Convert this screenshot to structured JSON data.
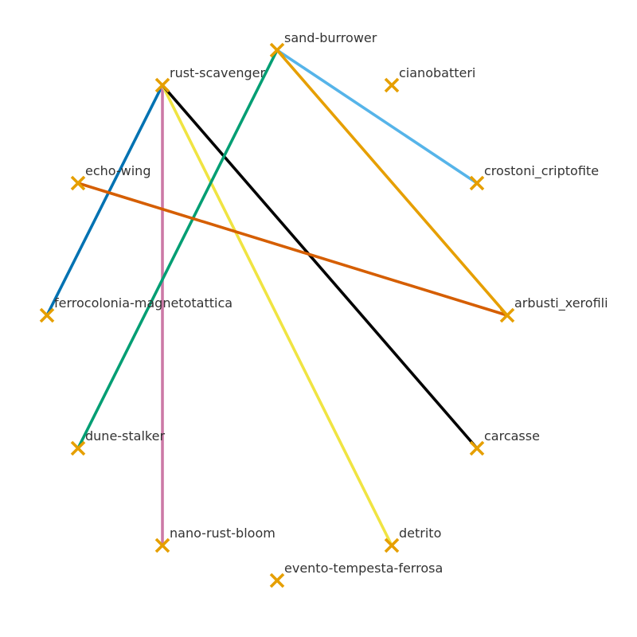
{
  "graph": {
    "nodes": [
      {
        "id": "sand-burrower",
        "label": "sand-burrower"
      },
      {
        "id": "rust-scavenger",
        "label": "rust-scavenger"
      },
      {
        "id": "cianobatteri",
        "label": "cianobatteri"
      },
      {
        "id": "echo-wing",
        "label": "echo-wing"
      },
      {
        "id": "crostoni_criptofite",
        "label": "crostoni_criptofite"
      },
      {
        "id": "ferrocolonia-magnetotattica",
        "label": "ferrocolonia-magnetotattica"
      },
      {
        "id": "arbusti_xerofili",
        "label": "arbusti_xerofili"
      },
      {
        "id": "dune-stalker",
        "label": "dune-stalker"
      },
      {
        "id": "carcasse",
        "label": "carcasse"
      },
      {
        "id": "nano-rust-bloom",
        "label": "nano-rust-bloom"
      },
      {
        "id": "detrito",
        "label": "detrito"
      },
      {
        "id": "evento-tempesta-ferrosa",
        "label": "evento-tempesta-ferrosa"
      }
    ],
    "edges": [
      {
        "source": "rust-scavenger",
        "target": "ferrocolonia-magnetotattica",
        "color": "#0072B2"
      },
      {
        "source": "rust-scavenger",
        "target": "nano-rust-bloom",
        "color": "#CC79A7"
      },
      {
        "source": "rust-scavenger",
        "target": "detrito",
        "color": "#F0E442"
      },
      {
        "source": "rust-scavenger",
        "target": "carcasse",
        "color": "#000000"
      },
      {
        "source": "sand-burrower",
        "target": "dune-stalker",
        "color": "#009E73"
      },
      {
        "source": "sand-burrower",
        "target": "crostoni_criptofite",
        "color": "#56B4E9"
      },
      {
        "source": "sand-burrower",
        "target": "arbusti_xerofili",
        "color": "#E69F00"
      },
      {
        "source": "echo-wing",
        "target": "arbusti_xerofili",
        "color": "#D55E00"
      }
    ],
    "marker_color": "#E69F00",
    "marker_shape": "x-cross"
  }
}
